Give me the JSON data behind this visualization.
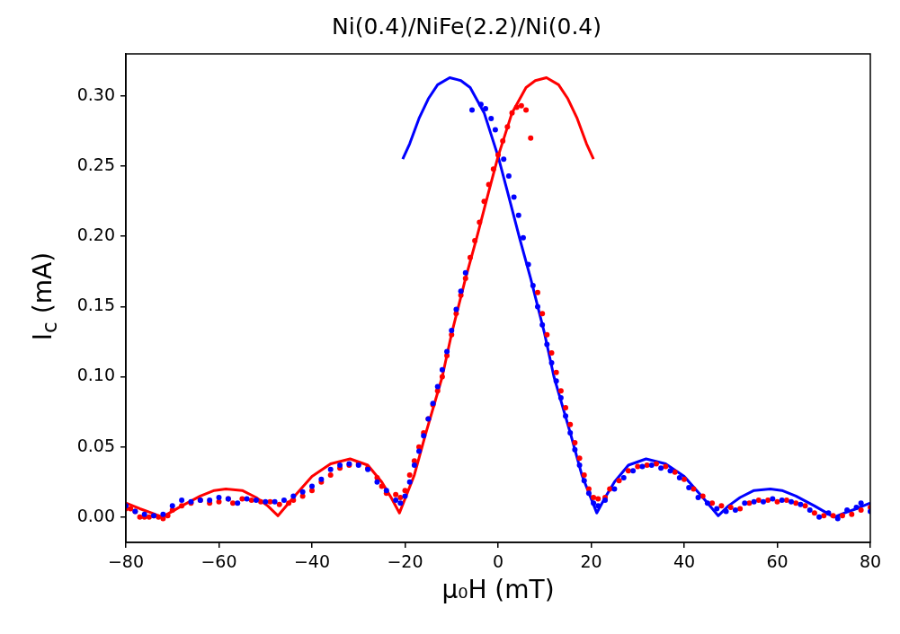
{
  "chart_data": {
    "type": "scatter",
    "title": "Ni(0.4)/NiFe(2.2)/Ni(0.4)",
    "xlabel": "μ₀H (mT)",
    "ylabel": "I$_{c}$ (mA)",
    "grid": false,
    "xlim": [
      -80,
      80
    ],
    "ylim": [
      -0.018,
      0.33
    ],
    "xticks": [
      {
        "value": -80,
        "label": "−80"
      },
      {
        "value": -60,
        "label": "−60"
      },
      {
        "value": -40,
        "label": "−40"
      },
      {
        "value": -20,
        "label": "−20"
      },
      0,
      20,
      40,
      60,
      80
    ],
    "yticks": [
      {
        "value": 0,
        "label": "0.00"
      },
      {
        "value": 0.05,
        "label": "0.05"
      },
      {
        "value": 0.1,
        "label": "0.10"
      },
      {
        "value": 0.15,
        "label": "0.15"
      },
      {
        "value": 0.2,
        "label": "0.20"
      },
      {
        "value": 0.25,
        "label": "0.25"
      },
      {
        "value": 0.3,
        "label": "0.30"
      }
    ],
    "series": [
      {
        "type": "scatter",
        "marker": "circle",
        "color": "#0000ff",
        "x": [
          -80,
          -78,
          -76,
          -74,
          -72,
          -70,
          -68,
          -66,
          -64,
          -62,
          -60,
          -58,
          -56,
          -54,
          -52,
          -50,
          -48,
          -46,
          -44,
          -42,
          -40,
          -38,
          -36,
          -34,
          -32,
          -30,
          -28,
          -26,
          -24,
          -22,
          -21,
          -20,
          -19,
          -18,
          -17,
          -16,
          -15,
          -14,
          -13,
          -12,
          -11,
          -10,
          -9,
          -8,
          -7,
          -5.6,
          -3.7,
          -2.7,
          -1.5,
          -0.6,
          1.2,
          2.3,
          3.4,
          4.4,
          5.4,
          6.5,
          7.5,
          8.5,
          9.5,
          10.5,
          11.5,
          12.5,
          13.5,
          14.5,
          15.5,
          16.5,
          17.5,
          18.5,
          19.5,
          20.5,
          21.5,
          23,
          25,
          27,
          29,
          31,
          33,
          35,
          37,
          39,
          41,
          43,
          45,
          47,
          49,
          51,
          53,
          55,
          57,
          59,
          61,
          63,
          65,
          67,
          69,
          71,
          73,
          75,
          77,
          78,
          80
        ],
        "values": [
          0.008,
          0.004,
          0.002,
          0.001,
          0.002,
          0.008,
          0.012,
          0.011,
          0.012,
          0.012,
          0.014,
          0.013,
          0.01,
          0.013,
          0.012,
          0.011,
          0.011,
          0.012,
          0.015,
          0.018,
          0.022,
          0.027,
          0.034,
          0.037,
          0.038,
          0.037,
          0.034,
          0.025,
          0.019,
          0.012,
          0.01,
          0.015,
          0.025,
          0.037,
          0.047,
          0.058,
          0.07,
          0.081,
          0.093,
          0.105,
          0.118,
          0.133,
          0.148,
          0.161,
          0.174,
          0.29,
          0.294,
          0.291,
          0.284,
          0.276,
          0.255,
          0.243,
          0.228,
          0.215,
          0.199,
          0.18,
          0.165,
          0.15,
          0.137,
          0.123,
          0.11,
          0.097,
          0.085,
          0.072,
          0.06,
          0.048,
          0.037,
          0.026,
          0.017,
          0.01,
          0.008,
          0.012,
          0.02,
          0.028,
          0.033,
          0.036,
          0.037,
          0.035,
          0.033,
          0.028,
          0.021,
          0.014,
          0.01,
          0.006,
          0.004,
          0.005,
          0.01,
          0.011,
          0.011,
          0.013,
          0.012,
          0.011,
          0.009,
          0.005,
          0,
          0.003,
          -0.001,
          0.005,
          0.007,
          0.01,
          0.004
        ]
      },
      {
        "type": "scatter",
        "marker": "circle",
        "color": "#ff0000",
        "x": [
          -80,
          -79,
          -78,
          -77,
          -76,
          -75,
          -74,
          -73,
          -72,
          -71,
          -70,
          -68,
          -66,
          -64,
          -62,
          -60,
          -58,
          -57,
          -55,
          -53,
          -51,
          -49,
          -47,
          -45,
          -44,
          -42,
          -40,
          -38,
          -36,
          -34,
          -32,
          -30,
          -28,
          -26,
          -25,
          -24,
          -22,
          -21,
          -20,
          -19,
          -18,
          -17,
          -16,
          -15,
          -14,
          -13,
          -12,
          -11,
          -10,
          -9,
          -8,
          -7,
          -6,
          -5,
          -4,
          -3,
          -2,
          -1,
          0,
          1,
          2,
          3,
          4,
          5,
          6,
          7,
          8.5,
          9.5,
          10.5,
          11.5,
          12.5,
          13.5,
          14.5,
          15.5,
          16.5,
          17.5,
          18.5,
          19.5,
          20.5,
          21.5,
          23,
          24,
          26,
          28,
          30,
          32,
          34,
          36,
          38,
          40,
          42,
          44,
          46,
          48,
          50,
          52,
          54,
          56,
          58,
          60,
          62,
          64,
          66,
          68,
          70,
          72,
          74,
          76,
          78,
          80
        ],
        "values": [
          0.006,
          0.006,
          0.004,
          0,
          0,
          0,
          0.001,
          0,
          -0.001,
          0.001,
          0.005,
          0.008,
          0.01,
          0.012,
          0.01,
          0.011,
          0.013,
          0.01,
          0.013,
          0.012,
          0.011,
          0.011,
          0.009,
          0.01,
          0.012,
          0.015,
          0.019,
          0.025,
          0.03,
          0.035,
          0.037,
          0.038,
          0.035,
          0.028,
          0.022,
          0.017,
          0.016,
          0.014,
          0.019,
          0.03,
          0.04,
          0.05,
          0.06,
          0.07,
          0.08,
          0.09,
          0.1,
          0.115,
          0.13,
          0.145,
          0.158,
          0.17,
          0.185,
          0.197,
          0.21,
          0.225,
          0.237,
          0.248,
          0.258,
          0.268,
          0.278,
          0.288,
          0.292,
          0.293,
          0.29,
          0.27,
          0.16,
          0.145,
          0.13,
          0.117,
          0.103,
          0.09,
          0.078,
          0.066,
          0.053,
          0.042,
          0.03,
          0.02,
          0.014,
          0.013,
          0.014,
          0.02,
          0.026,
          0.033,
          0.036,
          0.037,
          0.038,
          0.036,
          0.032,
          0.027,
          0.02,
          0.015,
          0.01,
          0.008,
          0.007,
          0.006,
          0.01,
          0.012,
          0.012,
          0.011,
          0.012,
          0.01,
          0.008,
          0.003,
          0.001,
          0.001,
          0.001,
          0.002,
          0.005,
          0.007
        ]
      },
      {
        "type": "line",
        "marker": "none",
        "line_style": "solid",
        "color": "#ff0000",
        "x": [
          -80,
          -77,
          -74.5,
          -72.2,
          -68,
          -64,
          -61,
          -58.5,
          -55,
          -52,
          -49.5,
          -47.3,
          -44,
          -40,
          -36,
          -31.8,
          -28,
          -25,
          -23,
          -21.2,
          -18,
          -15.6,
          -12,
          -9.9,
          -7,
          -4.6,
          -2,
          0,
          3,
          6,
          8,
          10.4,
          13,
          15,
          17,
          19,
          20.5
        ],
        "values": [
          0.01,
          0.006,
          0.003,
          0,
          0.008,
          0.015,
          0.019,
          0.02,
          0.019,
          0.014,
          0.008,
          0.001,
          0.014,
          0.029,
          0.038,
          0.0415,
          0.037,
          0.025,
          0.014,
          0.003,
          0.03,
          0.059,
          0.1,
          0.132,
          0.17,
          0.199,
          0.232,
          0.257,
          0.288,
          0.306,
          0.311,
          0.313,
          0.308,
          0.298,
          0.284,
          0.266,
          0.255
        ]
      },
      {
        "type": "line",
        "marker": "none",
        "line_style": "solid",
        "color": "#0000ff",
        "x": [
          -20.5,
          -19,
          -17,
          -15,
          -13,
          -10.4,
          -8,
          -6,
          -3,
          0,
          2,
          4.6,
          7,
          9.9,
          12,
          15.6,
          18,
          21.2,
          23,
          25,
          28,
          31.8,
          36,
          40,
          44,
          47.3,
          49.5,
          52,
          55,
          58.5,
          61,
          64,
          68,
          72.2,
          74.5,
          77,
          80
        ],
        "values": [
          0.255,
          0.266,
          0.284,
          0.298,
          0.308,
          0.313,
          0.311,
          0.306,
          0.288,
          0.257,
          0.232,
          0.199,
          0.17,
          0.132,
          0.1,
          0.059,
          0.03,
          0.003,
          0.014,
          0.025,
          0.037,
          0.0415,
          0.038,
          0.029,
          0.014,
          0.001,
          0.008,
          0.014,
          0.019,
          0.02,
          0.019,
          0.015,
          0.008,
          0,
          0.003,
          0.006,
          0.01
        ]
      }
    ]
  }
}
